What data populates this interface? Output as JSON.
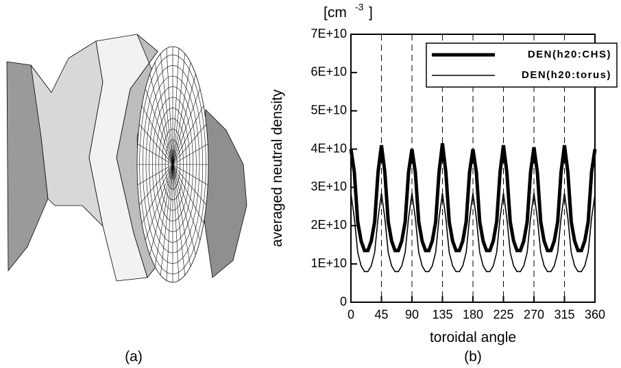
{
  "panel_a": {
    "caption": "(a)"
  },
  "chart_data": {
    "type": "line",
    "caption": "(b)",
    "xlabel": "toroidal angle",
    "ylabel": "averaged neutral density",
    "y_unit": {
      "open": "[cm",
      "exponent": "-3",
      "close": "]"
    },
    "xlim": [
      0,
      360
    ],
    "xticks": [
      0,
      45,
      90,
      135,
      180,
      225,
      270,
      315,
      360
    ],
    "ylim": [
      0,
      70000000000.0
    ],
    "yticks": [
      0,
      {
        "value": 10000000000.0,
        "label": "1E+10"
      },
      {
        "value": 20000000000.0,
        "label": "2E+10"
      },
      {
        "value": 30000000000.0,
        "label": "3E+10"
      },
      {
        "value": 40000000000.0,
        "label": "4E+10"
      },
      {
        "value": 50000000000.0,
        "label": "5E+10"
      },
      {
        "value": 60000000000.0,
        "label": "6E+10"
      },
      {
        "value": 70000000000.0,
        "label": "7E+10"
      }
    ],
    "x_grid": "dashed",
    "legend": "upper right",
    "x": [
      0,
      5,
      10,
      15,
      20,
      25,
      30,
      35,
      40,
      45,
      50,
      55,
      60,
      65,
      70,
      75,
      80,
      85,
      90,
      95,
      100,
      105,
      110,
      115,
      120,
      125,
      130,
      135,
      140,
      145,
      150,
      155,
      160,
      165,
      170,
      175,
      180,
      185,
      190,
      195,
      200,
      205,
      210,
      215,
      220,
      225,
      230,
      235,
      240,
      245,
      250,
      255,
      260,
      265,
      270,
      275,
      280,
      285,
      290,
      295,
      300,
      305,
      310,
      315,
      320,
      325,
      330,
      335,
      340,
      345,
      350,
      355,
      360
    ],
    "series": [
      {
        "name": "DEN(h20:CHS)",
        "color": "#000000",
        "width": 5,
        "values": [
          40000000000.0,
          34000000000.0,
          21000000000.0,
          16000000000.0,
          13500000000.0,
          13500000000.0,
          16000000000.0,
          21000000000.0,
          34000000000.0,
          41000000000.0,
          34000000000.0,
          21000000000.0,
          16000000000.0,
          13500000000.0,
          13500000000.0,
          16000000000.0,
          21000000000.0,
          34000000000.0,
          40000000000.0,
          34000000000.0,
          21000000000.0,
          16000000000.0,
          13500000000.0,
          13500000000.0,
          16000000000.0,
          21000000000.0,
          34000000000.0,
          41500000000.0,
          34000000000.0,
          21000000000.0,
          16000000000.0,
          13500000000.0,
          13500000000.0,
          16000000000.0,
          21000000000.0,
          34000000000.0,
          40000000000.0,
          34000000000.0,
          21000000000.0,
          16000000000.0,
          13500000000.0,
          13500000000.0,
          16000000000.0,
          21000000000.0,
          34000000000.0,
          41000000000.0,
          34000000000.0,
          21000000000.0,
          16000000000.0,
          13500000000.0,
          13500000000.0,
          16000000000.0,
          21000000000.0,
          34000000000.0,
          40500000000.0,
          34000000000.0,
          21000000000.0,
          16000000000.0,
          13500000000.0,
          13500000000.0,
          16000000000.0,
          21000000000.0,
          34000000000.0,
          41000000000.0,
          34000000000.0,
          21000000000.0,
          16000000000.0,
          13500000000.0,
          13500000000.0,
          16000000000.0,
          21000000000.0,
          34000000000.0,
          40000000000.0
        ]
      },
      {
        "name": "DEN(h20:torus)",
        "color": "#000000",
        "width": 1.6,
        "values": [
          28500000000.0,
          22000000000.0,
          13000000000.0,
          9500000000.0,
          8000000000.0,
          8000000000.0,
          9500000000.0,
          13000000000.0,
          22000000000.0,
          28500000000.0,
          22000000000.0,
          13000000000.0,
          9500000000.0,
          8000000000.0,
          8000000000.0,
          9500000000.0,
          13000000000.0,
          22000000000.0,
          28500000000.0,
          22000000000.0,
          13000000000.0,
          9500000000.0,
          8000000000.0,
          8000000000.0,
          9500000000.0,
          13000000000.0,
          22000000000.0,
          28500000000.0,
          22000000000.0,
          13000000000.0,
          9500000000.0,
          8000000000.0,
          8000000000.0,
          9500000000.0,
          13000000000.0,
          22000000000.0,
          28500000000.0,
          22000000000.0,
          13000000000.0,
          9500000000.0,
          8000000000.0,
          8000000000.0,
          9500000000.0,
          13000000000.0,
          22000000000.0,
          28500000000.0,
          22000000000.0,
          13000000000.0,
          9500000000.0,
          8000000000.0,
          8000000000.0,
          9500000000.0,
          13000000000.0,
          22000000000.0,
          28500000000.0,
          22000000000.0,
          13000000000.0,
          9500000000.0,
          8000000000.0,
          8000000000.0,
          9500000000.0,
          13000000000.0,
          22000000000.0,
          28500000000.0,
          22000000000.0,
          13000000000.0,
          9500000000.0,
          8000000000.0,
          8000000000.0,
          9500000000.0,
          13000000000.0,
          22000000000.0,
          28000000000.0
        ]
      }
    ]
  }
}
